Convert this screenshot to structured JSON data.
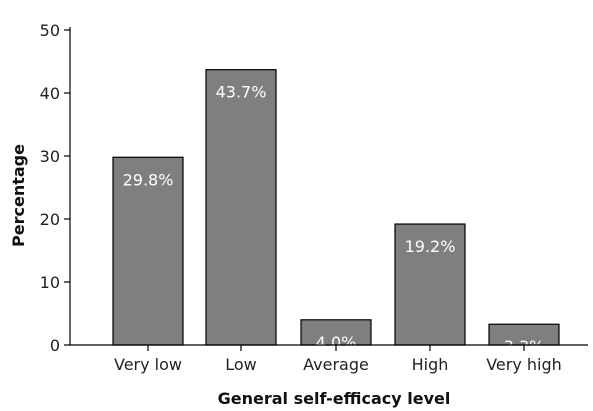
{
  "chart_data": {
    "type": "bar",
    "title": "",
    "xlabel": "General self-efficacy level",
    "ylabel": "Percentage",
    "categories": [
      "Very low",
      "Low",
      "Average",
      "High",
      "Very high"
    ],
    "values": [
      29.8,
      43.7,
      4.0,
      19.2,
      3.3
    ],
    "data_labels": [
      "29.8%",
      "43.7%",
      "4.0%",
      "19.2%",
      "3.3%"
    ],
    "ylim": [
      0,
      50
    ],
    "yticks": [
      0,
      10,
      20,
      30,
      40,
      50
    ],
    "grid": false,
    "legend": "none",
    "bar_color": "#7f7f7f",
    "label_color": "#ffffff"
  }
}
